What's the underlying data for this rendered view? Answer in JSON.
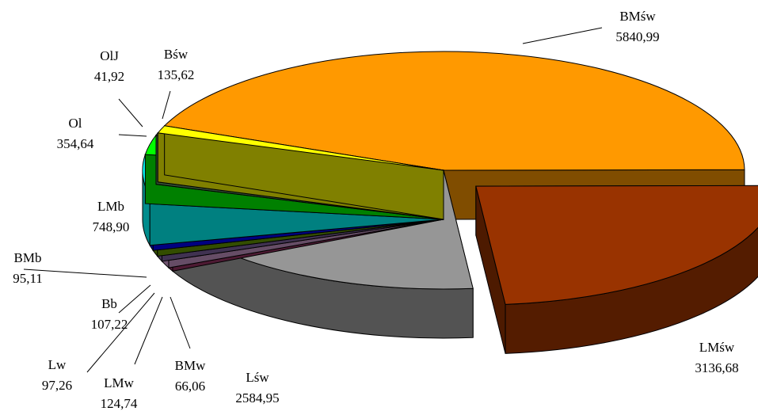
{
  "chart_data": {
    "type": "pie3d",
    "categories": [
      "BMśw",
      "LMśw",
      "Lśw",
      "BMw",
      "LMw",
      "Lw",
      "Bb",
      "BMb",
      "LMb",
      "Ol",
      "OlJ",
      "Bśw"
    ],
    "values": [
      5840.99,
      3136.68,
      2584.95,
      66.06,
      124.74,
      97.26,
      107.22,
      95.11,
      748.9,
      354.64,
      41.92,
      135.62
    ],
    "value_labels": [
      "5840,99",
      "3136,68",
      "2584,95",
      "66,06",
      "124,74",
      "97,26",
      "107,22",
      "95,11",
      "748,90",
      "354,64",
      "41,92",
      "135,62"
    ],
    "colors": [
      "#ff9900",
      "#993300",
      "#969696",
      "#993366",
      "#cc99cc",
      "#8064a2",
      "#669900",
      "#0000ff",
      "#00ffff",
      "#00ff00",
      "#669966",
      "#ffff00"
    ],
    "exploded": [
      1
    ]
  }
}
